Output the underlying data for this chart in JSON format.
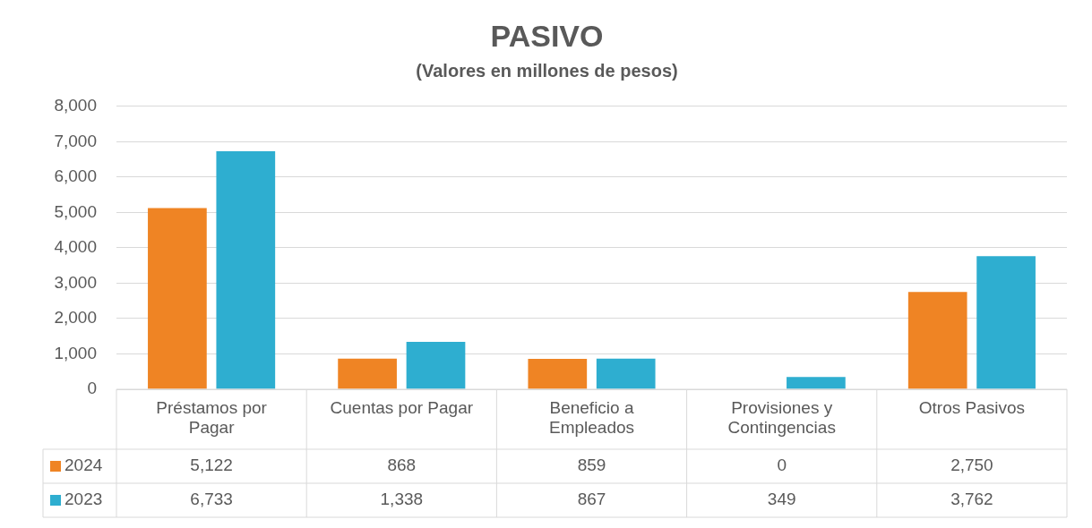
{
  "chart_data": {
    "type": "bar",
    "title": "PASIVO",
    "subtitle": "(Valores en millones de pesos)",
    "categories": [
      "Préstamos por Pagar",
      "Cuentas por Pagar",
      "Beneficio a Empleados",
      "Provisiones y Contingencias",
      "Otros Pasivos"
    ],
    "series": [
      {
        "name": "2024",
        "color": "#ef8424",
        "values": [
          5122,
          868,
          859,
          0,
          2750
        ],
        "value_labels": [
          "5,122",
          "868",
          "859",
          "0",
          "2,750"
        ]
      },
      {
        "name": "2023",
        "color": "#2eaed0",
        "values": [
          6733,
          1338,
          867,
          349,
          3762
        ],
        "value_labels": [
          "6,733",
          "1,338",
          "867",
          "349",
          "3,762"
        ]
      }
    ],
    "ylim": [
      0,
      8000
    ],
    "yticks": [
      {
        "value": 0,
        "label": "0"
      },
      {
        "value": 1000,
        "label": "1,000"
      },
      {
        "value": 2000,
        "label": "2,000"
      },
      {
        "value": 3000,
        "label": "3,000"
      },
      {
        "value": 4000,
        "label": "4,000"
      },
      {
        "value": 5000,
        "label": "5,000"
      },
      {
        "value": 6000,
        "label": "6,000"
      },
      {
        "value": 7000,
        "label": "7,000"
      },
      {
        "value": 8000,
        "label": "8,000"
      }
    ],
    "grid": "y",
    "legend": "bottom"
  }
}
